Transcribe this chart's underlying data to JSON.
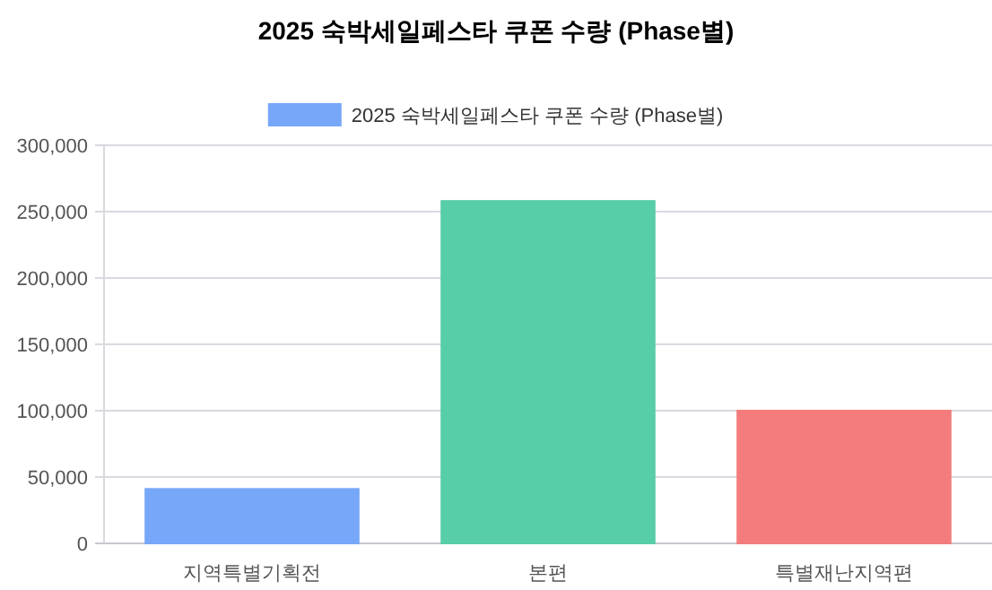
{
  "chart_data": {
    "type": "bar",
    "title": "2025 숙박세일페스타 쿠폰 수량 (Phase별)",
    "categories": [
      "지역특별기획전",
      "본편",
      "특별재난지역편"
    ],
    "series": [
      {
        "name": "2025 숙박세일페스타 쿠폰 수량 (Phase별)",
        "colors": [
          "#77a7f9",
          "#57cea7",
          "#f47c7c"
        ],
        "values": [
          41000,
          258000,
          100000
        ]
      }
    ],
    "ylim": [
      0,
      300000
    ],
    "yticks": [
      {
        "value": 0,
        "label": "0"
      },
      {
        "value": 50000,
        "label": "50,000"
      },
      {
        "value": 100000,
        "label": "100,000"
      },
      {
        "value": 150000,
        "label": "150,000"
      },
      {
        "value": 200000,
        "label": "200,000"
      },
      {
        "value": 250000,
        "label": "250,000"
      },
      {
        "value": 300000,
        "label": "300,000"
      }
    ],
    "grid": "y",
    "legend": "top"
  }
}
